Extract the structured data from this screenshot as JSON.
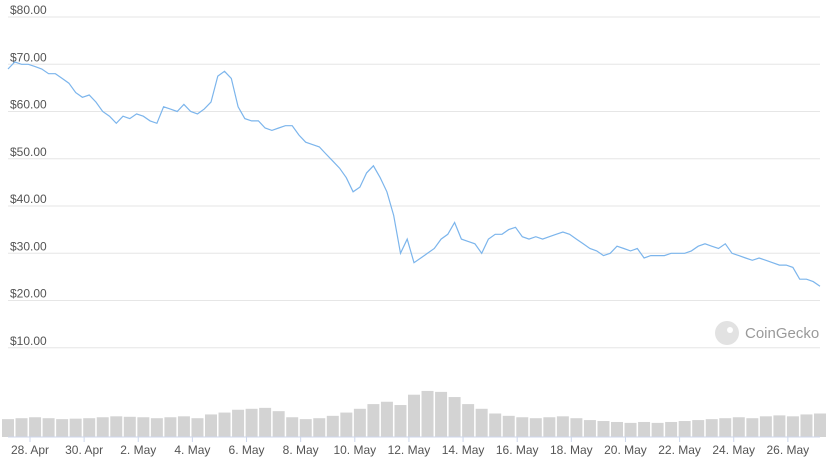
{
  "chart_data": {
    "type": "line",
    "watermark": "CoinGecko",
    "xlim": [
      0,
      120
    ],
    "xticks": [
      {
        "value": 3.25,
        "label": "28. Apr"
      },
      {
        "value": 11.25,
        "label": "30. Apr"
      },
      {
        "value": 19.25,
        "label": "2. May"
      },
      {
        "value": 27.25,
        "label": "4. May"
      },
      {
        "value": 35.25,
        "label": "6. May"
      },
      {
        "value": 43.25,
        "label": "8. May"
      },
      {
        "value": 51.25,
        "label": "10. May"
      },
      {
        "value": 59.25,
        "label": "12. May"
      },
      {
        "value": 67.25,
        "label": "14. May"
      },
      {
        "value": 75.25,
        "label": "16. May"
      },
      {
        "value": 83.25,
        "label": "18. May"
      },
      {
        "value": 91.25,
        "label": "20. May"
      },
      {
        "value": 99.25,
        "label": "22. May"
      },
      {
        "value": 107.25,
        "label": "24. May"
      },
      {
        "value": 115.25,
        "label": "26. May"
      }
    ],
    "ylim": [
      0,
      80
    ],
    "yticks": [
      {
        "value": 10,
        "label": "$10.00"
      },
      {
        "value": 20,
        "label": "$20.00"
      },
      {
        "value": 30,
        "label": "$30.00"
      },
      {
        "value": 40,
        "label": "$40.00"
      },
      {
        "value": 50,
        "label": "$50.00"
      },
      {
        "value": 60,
        "label": "$60.00"
      },
      {
        "value": 70,
        "label": "$70.00"
      },
      {
        "value": 80,
        "label": "$80.00"
      }
    ],
    "y2lim": [
      0,
      100
    ],
    "grid": true,
    "series": [
      {
        "type": "line",
        "color": "#7cb5ec",
        "values": [
          69,
          70.5,
          70,
          70,
          69.5,
          69,
          68,
          68,
          67,
          66,
          64,
          63,
          63.5,
          62,
          60,
          59,
          57.5,
          59,
          58.5,
          59.5,
          59,
          58,
          57.5,
          61,
          60.5,
          60,
          61.5,
          60,
          59.5,
          60.5,
          62,
          67.5,
          68.5,
          67,
          61,
          58.5,
          58,
          58,
          56.5,
          56,
          56.5,
          57,
          57,
          55,
          53.5,
          53,
          52.5,
          51,
          49.5,
          48,
          46,
          43,
          44,
          47,
          48.5,
          46,
          43,
          38,
          30,
          33,
          28,
          29,
          30,
          31,
          33,
          34,
          36.5,
          33,
          32.5,
          32,
          30,
          33,
          34,
          34,
          35,
          35.5,
          33.5,
          33,
          33.5,
          33,
          33.5,
          34,
          34.5,
          34,
          33,
          32,
          31,
          30.5,
          29.5,
          30,
          31.5,
          31,
          30.5,
          31,
          29,
          29.5,
          29.5,
          29.5,
          30,
          30,
          30,
          30.5,
          31.5,
          32,
          31.5,
          31,
          32,
          30,
          29.5,
          29,
          28.5,
          29,
          28.5,
          28,
          27.5,
          27.5,
          27,
          24.5,
          24.5,
          24,
          23
        ]
      },
      {
        "type": "bar",
        "axis": "y2",
        "color": "#d3d3d3",
        "values": [
          38,
          40,
          42,
          40,
          38,
          39,
          40,
          42,
          44,
          43,
          42,
          40,
          42,
          44,
          40,
          48,
          52,
          58,
          60,
          62,
          55,
          42,
          38,
          40,
          45,
          52,
          60,
          70,
          75,
          68,
          90,
          98,
          96,
          85,
          70,
          60,
          50,
          45,
          42,
          40,
          42,
          44,
          40,
          36,
          34,
          32,
          30,
          32,
          30,
          32,
          34,
          36,
          38,
          40,
          42,
          40,
          44,
          46,
          44,
          48,
          50
        ]
      }
    ]
  }
}
